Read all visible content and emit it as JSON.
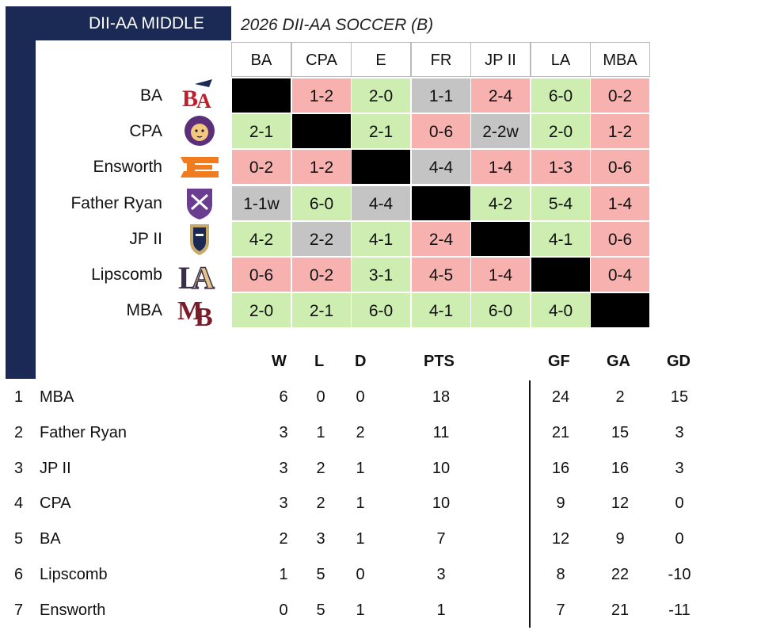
{
  "header": {
    "section": "DII-AA MIDDLE",
    "title": "2026 DII-AA SOCCER (B)"
  },
  "columns": [
    "BA",
    "CPA",
    "E",
    "FR",
    "JP II",
    "LA",
    "MBA"
  ],
  "rows": [
    {
      "team": "BA",
      "logo": "ba-logo",
      "cells": [
        {
          "t": "",
          "r": "self"
        },
        {
          "t": "1-2",
          "r": "loss"
        },
        {
          "t": "2-0",
          "r": "win"
        },
        {
          "t": "1-1",
          "r": "draw"
        },
        {
          "t": "2-4",
          "r": "loss"
        },
        {
          "t": "6-0",
          "r": "win"
        },
        {
          "t": "0-2",
          "r": "loss"
        }
      ]
    },
    {
      "team": "CPA",
      "logo": "lion-logo",
      "cells": [
        {
          "t": "2-1",
          "r": "win"
        },
        {
          "t": "",
          "r": "self"
        },
        {
          "t": "2-1",
          "r": "win"
        },
        {
          "t": "0-6",
          "r": "loss"
        },
        {
          "t": "2-2w",
          "r": "draw"
        },
        {
          "t": "2-0",
          "r": "win"
        },
        {
          "t": "1-2",
          "r": "loss"
        }
      ]
    },
    {
      "team": "Ensworth",
      "logo": "e-logo",
      "cells": [
        {
          "t": "0-2",
          "r": "loss"
        },
        {
          "t": "1-2",
          "r": "loss"
        },
        {
          "t": "",
          "r": "self"
        },
        {
          "t": "4-4",
          "r": "draw"
        },
        {
          "t": "1-4",
          "r": "loss"
        },
        {
          "t": "1-3",
          "r": "loss"
        },
        {
          "t": "0-6",
          "r": "loss"
        }
      ]
    },
    {
      "team": "Father Ryan",
      "logo": "shield-logo",
      "cells": [
        {
          "t": "1-1w",
          "r": "draw"
        },
        {
          "t": "6-0",
          "r": "win"
        },
        {
          "t": "4-4",
          "r": "draw"
        },
        {
          "t": "",
          "r": "self"
        },
        {
          "t": "4-2",
          "r": "win"
        },
        {
          "t": "5-4",
          "r": "win"
        },
        {
          "t": "1-4",
          "r": "loss"
        }
      ]
    },
    {
      "team": "JP II",
      "logo": "knight-logo",
      "cells": [
        {
          "t": "4-2",
          "r": "win"
        },
        {
          "t": "2-2",
          "r": "draw"
        },
        {
          "t": "4-1",
          "r": "win"
        },
        {
          "t": "2-4",
          "r": "loss"
        },
        {
          "t": "",
          "r": "self"
        },
        {
          "t": "4-1",
          "r": "win"
        },
        {
          "t": "0-6",
          "r": "loss"
        }
      ]
    },
    {
      "team": "Lipscomb",
      "logo": "la-logo",
      "cells": [
        {
          "t": "0-6",
          "r": "loss"
        },
        {
          "t": "0-2",
          "r": "loss"
        },
        {
          "t": "3-1",
          "r": "win"
        },
        {
          "t": "4-5",
          "r": "loss"
        },
        {
          "t": "1-4",
          "r": "loss"
        },
        {
          "t": "",
          "r": "self"
        },
        {
          "t": "0-4",
          "r": "loss"
        }
      ]
    },
    {
      "team": "MBA",
      "logo": "mb-logo",
      "cells": [
        {
          "t": "2-0",
          "r": "win"
        },
        {
          "t": "2-1",
          "r": "win"
        },
        {
          "t": "6-0",
          "r": "win"
        },
        {
          "t": "4-1",
          "r": "win"
        },
        {
          "t": "6-0",
          "r": "win"
        },
        {
          "t": "4-0",
          "r": "win"
        },
        {
          "t": "",
          "r": "self"
        }
      ]
    }
  ],
  "colors": {
    "navy": "#1b2a55",
    "win": "#cdeeb0",
    "loss": "#f7b2b0",
    "draw": "#c4c4c4",
    "self": "#000000"
  },
  "standings": {
    "headers": {
      "w": "W",
      "l": "L",
      "d": "D",
      "pts": "PTS",
      "gf": "GF",
      "ga": "GA",
      "gd": "GD"
    },
    "rows": [
      {
        "rank": "1",
        "team": "MBA",
        "w": "6",
        "l": "0",
        "d": "0",
        "pts": "18",
        "gf": "24",
        "ga": "2",
        "gd": "15"
      },
      {
        "rank": "2",
        "team": "Father Ryan",
        "w": "3",
        "l": "1",
        "d": "2",
        "pts": "11",
        "gf": "21",
        "ga": "15",
        "gd": "3"
      },
      {
        "rank": "3",
        "team": "JP II",
        "w": "3",
        "l": "2",
        "d": "1",
        "pts": "10",
        "gf": "16",
        "ga": "16",
        "gd": "3"
      },
      {
        "rank": "4",
        "team": "CPA",
        "w": "3",
        "l": "2",
        "d": "1",
        "pts": "10",
        "gf": "9",
        "ga": "12",
        "gd": "0"
      },
      {
        "rank": "5",
        "team": "BA",
        "w": "2",
        "l": "3",
        "d": "1",
        "pts": "7",
        "gf": "12",
        "ga": "9",
        "gd": "0"
      },
      {
        "rank": "6",
        "team": "Lipscomb",
        "w": "1",
        "l": "5",
        "d": "0",
        "pts": "3",
        "gf": "8",
        "ga": "22",
        "gd": "-10"
      },
      {
        "rank": "7",
        "team": "Ensworth",
        "w": "0",
        "l": "5",
        "d": "1",
        "pts": "1",
        "gf": "7",
        "ga": "21",
        "gd": "-11"
      }
    ]
  }
}
